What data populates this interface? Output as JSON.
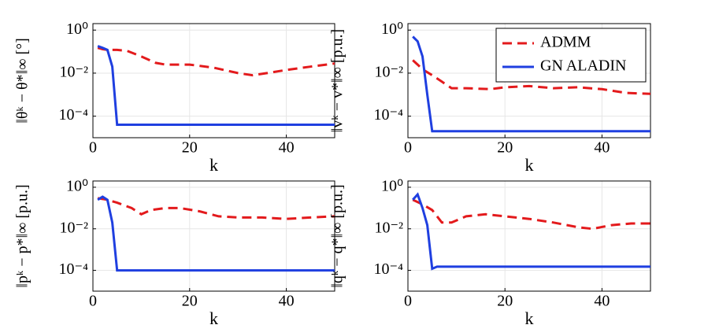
{
  "chart_data": [
    {
      "type": "line",
      "ylabel": "‖θᵏ − θ*‖∞ [°]",
      "xlabel": "k",
      "log_y": true,
      "grid": true,
      "xlim": [
        0,
        50
      ],
      "xticks": [
        0,
        20,
        40
      ],
      "ylim": [
        1e-05,
        2
      ],
      "yticks": [
        {
          "value": 1,
          "label": "10⁰"
        },
        {
          "value": 0.01,
          "label": "10⁻²"
        },
        {
          "value": 0.0001,
          "label": "10⁻⁴"
        }
      ],
      "series": [
        {
          "color": "#e31a1c",
          "dash": true,
          "x": [
            1,
            2,
            3,
            5,
            7,
            10,
            13,
            15,
            20,
            25,
            30,
            33,
            36,
            40,
            45,
            50
          ],
          "values": [
            0.15,
            0.13,
            0.12,
            0.12,
            0.11,
            0.06,
            0.03,
            0.025,
            0.025,
            0.018,
            0.01,
            0.008,
            0.01,
            0.014,
            0.02,
            0.028
          ]
        },
        {
          "color": "#1f3fe0",
          "dash": false,
          "x": [
            1,
            2,
            3,
            4,
            5,
            50
          ],
          "values": [
            0.18,
            0.15,
            0.12,
            0.02,
            4e-05,
            4e-05
          ]
        }
      ]
    },
    {
      "type": "line",
      "ylabel": "‖vᵏ − v*‖∞ [p.u.]",
      "xlabel": "k",
      "log_y": true,
      "grid": true,
      "legend": "upper right",
      "xlim": [
        0,
        50
      ],
      "xticks": [
        0,
        20,
        40
      ],
      "ylim": [
        1e-05,
        2
      ],
      "yticks": [
        {
          "value": 1,
          "label": "10⁰"
        },
        {
          "value": 0.01,
          "label": "10⁻²"
        },
        {
          "value": 0.0001,
          "label": "10⁻⁴"
        }
      ],
      "series": [
        {
          "name": "ADMM",
          "color": "#e31a1c",
          "dash": true,
          "x": [
            1,
            2,
            3,
            5,
            7,
            9,
            12,
            17,
            20,
            25,
            30,
            35,
            40,
            45,
            50
          ],
          "values": [
            0.04,
            0.025,
            0.015,
            0.008,
            0.004,
            0.002,
            0.002,
            0.0018,
            0.0022,
            0.0025,
            0.002,
            0.0022,
            0.0018,
            0.0012,
            0.0011
          ]
        },
        {
          "name": "GN ALADIN",
          "color": "#1f3fe0",
          "dash": false,
          "x": [
            1,
            2,
            3,
            4,
            5,
            50
          ],
          "values": [
            0.5,
            0.3,
            0.06,
            0.001,
            2e-05,
            2e-05
          ]
        }
      ]
    },
    {
      "type": "line",
      "ylabel": "‖pᵏ − p*‖∞ [p.u.]",
      "xlabel": "k",
      "log_y": true,
      "grid": true,
      "xlim": [
        0,
        50
      ],
      "xticks": [
        0,
        20,
        40
      ],
      "ylim": [
        1e-05,
        2
      ],
      "yticks": [
        {
          "value": 1,
          "label": "10⁰"
        },
        {
          "value": 0.01,
          "label": "10⁻²"
        },
        {
          "value": 0.0001,
          "label": "10⁻⁴"
        }
      ],
      "series": [
        {
          "color": "#e31a1c",
          "dash": true,
          "x": [
            1,
            3,
            5,
            8,
            10,
            12,
            15,
            18,
            22,
            26,
            30,
            35,
            40,
            45,
            50
          ],
          "values": [
            0.3,
            0.25,
            0.18,
            0.1,
            0.05,
            0.08,
            0.1,
            0.1,
            0.07,
            0.04,
            0.035,
            0.035,
            0.03,
            0.035,
            0.04
          ]
        },
        {
          "color": "#1f3fe0",
          "dash": false,
          "x": [
            1,
            2,
            3,
            4,
            5,
            50
          ],
          "values": [
            0.25,
            0.35,
            0.25,
            0.02,
            0.0001,
            0.0001
          ]
        }
      ]
    },
    {
      "type": "line",
      "ylabel": "‖qᵏ − q*‖∞ [p.u.]",
      "xlabel": "k",
      "log_y": true,
      "grid": true,
      "xlim": [
        0,
        50
      ],
      "xticks": [
        0,
        20,
        40
      ],
      "ylim": [
        1e-05,
        2
      ],
      "yticks": [
        {
          "value": 1,
          "label": "10⁰"
        },
        {
          "value": 0.01,
          "label": "10⁻²"
        },
        {
          "value": 0.0001,
          "label": "10⁻⁴"
        }
      ],
      "series": [
        {
          "color": "#e31a1c",
          "dash": true,
          "x": [
            1,
            3,
            5,
            7,
            9,
            12,
            16,
            20,
            25,
            30,
            35,
            38,
            42,
            46,
            50
          ],
          "values": [
            0.25,
            0.15,
            0.08,
            0.02,
            0.02,
            0.04,
            0.05,
            0.04,
            0.03,
            0.02,
            0.012,
            0.01,
            0.015,
            0.018,
            0.018
          ]
        },
        {
          "color": "#1f3fe0",
          "dash": false,
          "x": [
            1,
            2,
            3,
            4,
            5,
            6,
            50
          ],
          "values": [
            0.25,
            0.45,
            0.1,
            0.015,
            0.00012,
            0.00015,
            0.00015
          ]
        }
      ]
    }
  ]
}
